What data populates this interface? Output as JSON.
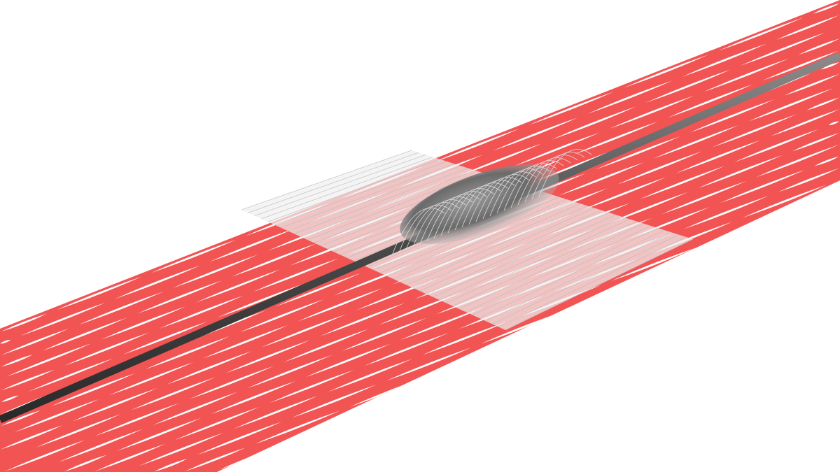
{
  "scene": {
    "background_color": "#ffffff",
    "sheet_color": "#f25454",
    "slit_color": "#ffffff",
    "rod_color": "#4a4a4a",
    "patch_color": "#e8e8e8",
    "bump_color": "#6e6e6e"
  }
}
